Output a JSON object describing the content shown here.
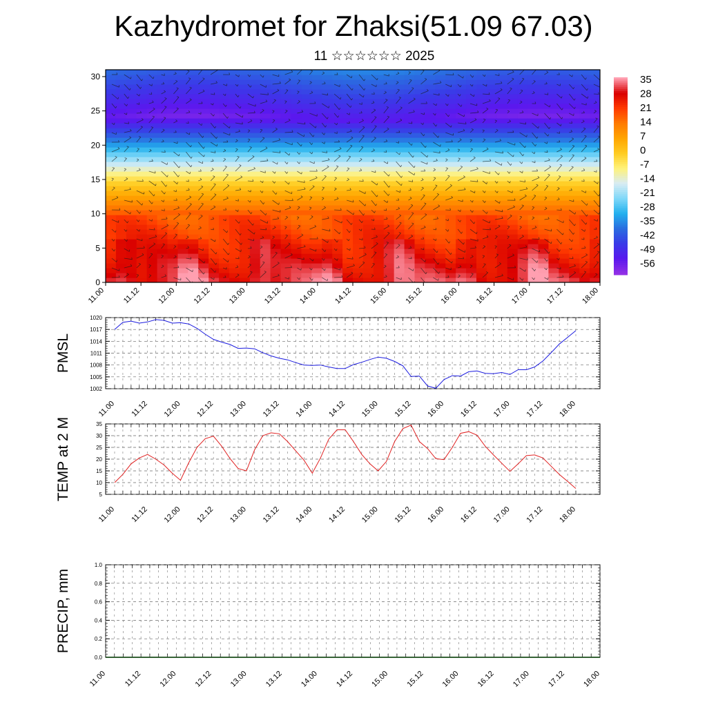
{
  "title": "Kazhydromet for Zhaksi(51.09 67.03)",
  "subtitle": "11 ☆☆☆☆☆☆ 2025",
  "colors": {
    "pmsl_line": "#1a1adf",
    "temp_line": "#e02020",
    "precip_line": "#1a4d1a"
  },
  "chart_data": [
    {
      "type": "heatmap",
      "name": "temperature-wind cross section",
      "x_ticks": [
        "11.00",
        "11.12",
        "12.00",
        "12.12",
        "13.00",
        "13.12",
        "14.00",
        "14.12",
        "15.00",
        "15.12",
        "16.00",
        "16.12",
        "17.00",
        "17.12",
        "18.00"
      ],
      "y_ticks": [
        0,
        5,
        10,
        15,
        20,
        25,
        30
      ],
      "ylim": [
        0,
        31
      ],
      "colorbar_labels": [
        "35",
        "28",
        "21",
        "14",
        "7",
        "0",
        "-7",
        "-14",
        "-21",
        "-28",
        "-35",
        "-42",
        "-49",
        "-56"
      ],
      "colorscale": [
        "#ff9fb0",
        "#d90000",
        "#ff3a00",
        "#ff7a00",
        "#ffa500",
        "#ffcc22",
        "#fff27a",
        "#d8ecf4",
        "#7fd8f8",
        "#22b0ee",
        "#2a6de0",
        "#3a3ae8",
        "#5a18ee",
        "#9230e6"
      ],
      "wind_barbs": true,
      "legend": "right"
    },
    {
      "type": "line",
      "ylabel": "PMSL",
      "x_ticks": [
        "11.00",
        "11.12",
        "12.00",
        "12.12",
        "13.00",
        "13.12",
        "14.00",
        "14.12",
        "15.00",
        "15.12",
        "16.00",
        "16.12",
        "17.00",
        "17.12",
        "18.00"
      ],
      "y_ticks": [
        1002,
        1005,
        1008,
        1011,
        1014,
        1017,
        1020
      ],
      "ylim": [
        1002,
        1020
      ],
      "x": [
        0,
        3,
        6,
        9,
        12,
        15,
        18,
        21,
        24,
        27,
        30,
        33,
        36,
        39,
        42,
        45,
        48,
        51,
        54,
        57,
        60,
        63,
        66,
        69,
        72,
        75,
        78,
        81,
        84,
        87,
        90,
        93,
        96,
        99,
        102,
        105,
        108,
        111,
        114,
        117,
        120,
        123,
        126,
        129,
        132,
        135,
        138,
        141,
        144,
        147,
        150,
        153,
        156,
        159,
        162,
        165,
        168
      ],
      "series": [
        {
          "values": [
            1017,
            1018.8,
            1019.1,
            1018.6,
            1018.9,
            1019.5,
            1019.3,
            1018.6,
            1018.7,
            1018.4,
            1017.3,
            1015.8,
            1014.5,
            1013.8,
            1013.2,
            1012.2,
            1012.3,
            1012.1,
            1011.1,
            1010.3,
            1009.7,
            1009.3,
            1008.6,
            1008,
            1007.9,
            1008,
            1007.5,
            1007.1,
            1007.1,
            1008.1,
            1008.7,
            1009.4,
            1010,
            1009.7,
            1008.9,
            1007.8,
            1005.1,
            1005.2,
            1002.7,
            1002.1,
            1004.3,
            1005.3,
            1005.2,
            1006.3,
            1006.5,
            1005.9,
            1005.8,
            1006.1,
            1005.6,
            1006.8,
            1006.8,
            1007.5,
            1009,
            1011.1,
            1013.3,
            1015,
            1016.7
          ]
        }
      ]
    },
    {
      "type": "line",
      "ylabel": "TEMP at 2 M",
      "x_ticks": [
        "11.00",
        "11.12",
        "12.00",
        "12.12",
        "13.00",
        "13.12",
        "14.00",
        "14.12",
        "15.00",
        "15.12",
        "16.00",
        "16.12",
        "17.00",
        "17.12",
        "18.00"
      ],
      "y_ticks": [
        5,
        10,
        15,
        20,
        25,
        30,
        35
      ],
      "ylim": [
        5,
        35
      ],
      "x": [
        0,
        3,
        6,
        9,
        12,
        15,
        18,
        21,
        24,
        27,
        30,
        33,
        36,
        39,
        42,
        45,
        48,
        51,
        54,
        57,
        60,
        63,
        66,
        69,
        72,
        75,
        78,
        81,
        84,
        87,
        90,
        93,
        96,
        99,
        102,
        105,
        108,
        111,
        114,
        117,
        120,
        123,
        126,
        129,
        132,
        135,
        138,
        141,
        144,
        147,
        150,
        153,
        156,
        159,
        162,
        165,
        168
      ],
      "series": [
        {
          "values": [
            10,
            13.5,
            18,
            20.5,
            22,
            20,
            17.5,
            14,
            11,
            18.5,
            25,
            28.7,
            29.8,
            25.5,
            20.3,
            16,
            15,
            24,
            30,
            31.2,
            30.8,
            27.5,
            23.5,
            19.5,
            14,
            20.5,
            28.5,
            32.5,
            32.5,
            27.5,
            22,
            18,
            15,
            19,
            27.5,
            33,
            34.5,
            27.5,
            24.5,
            20.2,
            19.8,
            25,
            31,
            31.7,
            30.2,
            25.5,
            21.8,
            18.3,
            14.8,
            18,
            21.5,
            21.8,
            20.5,
            17,
            13.5,
            10.5,
            7.5
          ]
        }
      ]
    },
    {
      "type": "line",
      "ylabel": "PRECIP, mm",
      "x_ticks": [
        "11.00",
        "11.12",
        "12.00",
        "12.12",
        "13.00",
        "13.12",
        "14.00",
        "14.12",
        "15.00",
        "15.12",
        "16.00",
        "16.12",
        "17.00",
        "17.12",
        "18.00"
      ],
      "y_ticks": [
        "0.0",
        "0.2",
        "0.4",
        "0.6",
        "0.8",
        "1.0"
      ],
      "ylim": [
        0,
        1
      ],
      "x": [
        0,
        168
      ],
      "series": [
        {
          "values": [
            0,
            0
          ]
        }
      ]
    }
  ]
}
